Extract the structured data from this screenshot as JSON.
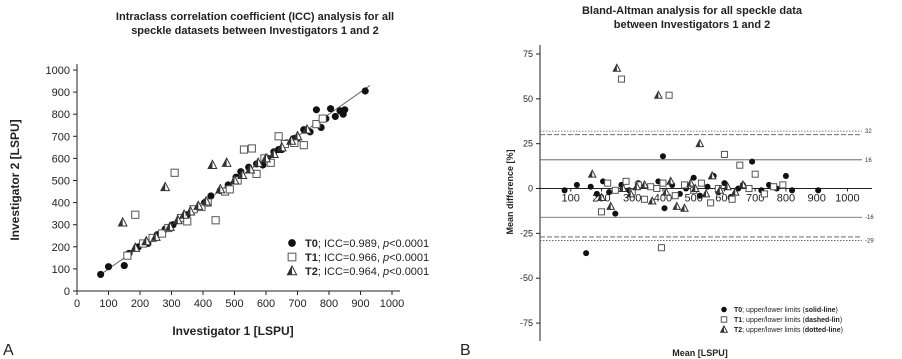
{
  "chart_data": [
    {
      "panel": "A",
      "type": "scatter",
      "title": "Intraclass correlation coefficient (ICC) analysis for all speckle datasets between Investigators 1 and 2",
      "title_lines": [
        "Intraclass correlation coefficient (ICC) analysis for all",
        "speckle datasets between Investigators 1 and 2"
      ],
      "xlabel": "Investigator 1 [LSPU]",
      "ylabel": "Investigator 2 [LSPU]",
      "xlim": [
        0,
        1000
      ],
      "ylim": [
        0,
        1000
      ],
      "xticks": [
        0,
        100,
        200,
        300,
        400,
        500,
        600,
        700,
        800,
        900,
        1000
      ],
      "yticks": [
        0,
        100,
        200,
        300,
        400,
        500,
        600,
        700,
        800,
        900,
        1000
      ],
      "legend_position": "bottom-right",
      "series": [
        {
          "name": "T0",
          "legend_text": [
            "T0",
            "; ICC=0.989, ",
            "p",
            "<0.0001"
          ],
          "marker": "circle",
          "color": "#111111",
          "x": [
            75,
            100,
            150,
            165,
            195,
            225,
            255,
            280,
            305,
            325,
            350,
            375,
            395,
            405,
            425,
            455,
            480,
            505,
            520,
            545,
            570,
            590,
            605,
            625,
            640,
            650,
            665,
            690,
            700,
            720,
            740,
            760,
            775,
            790,
            805,
            820,
            835,
            845,
            850,
            915
          ],
          "y": [
            75,
            110,
            115,
            170,
            200,
            215,
            255,
            280,
            300,
            325,
            345,
            370,
            380,
            400,
            430,
            455,
            480,
            515,
            540,
            560,
            575,
            570,
            600,
            630,
            640,
            640,
            670,
            690,
            690,
            730,
            720,
            820,
            740,
            780,
            825,
            790,
            815,
            800,
            820,
            905
          ]
        },
        {
          "name": "T1",
          "legend_text": [
            "T1",
            "; ICC=0.966, ",
            "p",
            "<0.0001"
          ],
          "marker": "square",
          "color": "#555555",
          "x": [
            160,
            185,
            210,
            240,
            270,
            290,
            310,
            330,
            350,
            370,
            395,
            415,
            440,
            470,
            485,
            510,
            530,
            555,
            570,
            595,
            615,
            640,
            660,
            690,
            720,
            760,
            780
          ],
          "y": [
            160,
            345,
            215,
            240,
            260,
            285,
            535,
            330,
            315,
            370,
            380,
            400,
            320,
            450,
            460,
            500,
            640,
            645,
            530,
            600,
            580,
            700,
            665,
            670,
            660,
            755,
            780
          ]
        },
        {
          "name": "T2",
          "legend_text": [
            "T2",
            "; ICC=0.964, ",
            "p",
            "<0.0001"
          ],
          "marker": "triangle",
          "color": "#333333",
          "x": [
            145,
            185,
            220,
            250,
            280,
            295,
            320,
            340,
            360,
            385,
            410,
            430,
            455,
            475,
            500,
            525,
            550,
            575,
            600,
            625,
            650,
            680,
            700,
            730
          ],
          "y": [
            310,
            195,
            225,
            245,
            470,
            290,
            320,
            345,
            360,
            385,
            405,
            570,
            460,
            580,
            500,
            525,
            550,
            580,
            600,
            620,
            650,
            680,
            700,
            730
          ]
        }
      ],
      "reference_line": {
        "x": [
          70,
          930
        ],
        "y": [
          70,
          930
        ]
      }
    },
    {
      "panel": "B",
      "type": "scatter",
      "title": "Bland-Altman analysis for all speckle data between Investigators 1 and 2",
      "title_lines": [
        "Bland-Altman analysis for all speckle data",
        "between Investigators 1 and 2"
      ],
      "xlabel": "Mean [LSPU]",
      "ylabel": "Mean difference [%]",
      "xlim": [
        0,
        1080
      ],
      "ylim": [
        -85,
        80
      ],
      "xticks": [
        100,
        200,
        300,
        400,
        500,
        600,
        700,
        800,
        900,
        1000
      ],
      "yticks": [
        -75,
        -50,
        -25,
        0,
        25,
        50,
        75
      ],
      "legend_position": "bottom-right",
      "limit_lines": [
        {
          "y": 32,
          "label": "32",
          "style": "dotted"
        },
        {
          "y": 30,
          "label": "",
          "style": "dashed"
        },
        {
          "y": 16,
          "label": "16",
          "style": "solid"
        },
        {
          "y": -16,
          "label": "-16",
          "style": "solid"
        },
        {
          "y": -27,
          "label": "",
          "style": "dashed"
        },
        {
          "y": -29,
          "label": "-29",
          "style": "dotted"
        }
      ],
      "series": [
        {
          "name": "T0",
          "legend_text": [
            "T0",
            "; upper/lower limits (",
            "solid-line",
            ")"
          ],
          "marker": "circle",
          "color": "#111111",
          "x": [
            80,
            120,
            150,
            165,
            185,
            205,
            225,
            245,
            265,
            290,
            320,
            340,
            360,
            385,
            400,
            405,
            430,
            455,
            475,
            500,
            520,
            545,
            565,
            580,
            600,
            620,
            645,
            660,
            690,
            720,
            745,
            770,
            800,
            820,
            905
          ],
          "y": [
            -1,
            2,
            -36,
            1,
            -3,
            4,
            -2,
            -14,
            2,
            -1,
            3,
            -6,
            1,
            4,
            18,
            -11,
            2,
            -3,
            0,
            6,
            -4,
            1,
            7,
            -2,
            3,
            -5,
            0,
            2,
            15,
            -1,
            2,
            0,
            7,
            -1,
            -1
          ]
        },
        {
          "name": "T1",
          "legend_text": [
            "T1",
            "; upper/lower limits (",
            "dashed-lin",
            ")"
          ],
          "marker": "square",
          "color": "#555555",
          "x": [
            200,
            220,
            245,
            265,
            280,
            300,
            320,
            340,
            360,
            380,
            395,
            400,
            420,
            440,
            470,
            500,
            525,
            555,
            580,
            600,
            625,
            650,
            680,
            700,
            730,
            760,
            790
          ],
          "y": [
            -13,
            3,
            -1,
            61,
            4,
            -2,
            2,
            -6,
            1,
            0,
            -33,
            3,
            52,
            -4,
            2,
            -1,
            3,
            -8,
            0,
            19,
            -6,
            13,
            0,
            8,
            -3,
            1,
            2
          ]
        },
        {
          "name": "T2",
          "legend_text": [
            "T2",
            "; upper/lower limits (",
            "dotted-line",
            ")"
          ],
          "marker": "triangle",
          "color": "#333333",
          "x": [
            170,
            200,
            230,
            250,
            270,
            295,
            315,
            340,
            365,
            385,
            410,
            425,
            445,
            470,
            490,
            505,
            520,
            540,
            560,
            585,
            610,
            635,
            660
          ],
          "y": [
            8,
            -5,
            -10,
            67,
            0,
            -3,
            1,
            2,
            -7,
            52,
            -2,
            4,
            -10,
            -11,
            3,
            0,
            25,
            -3,
            7,
            -1,
            1,
            -2,
            2
          ]
        }
      ]
    }
  ],
  "panel_letters": {
    "a": "A",
    "b": "B"
  }
}
